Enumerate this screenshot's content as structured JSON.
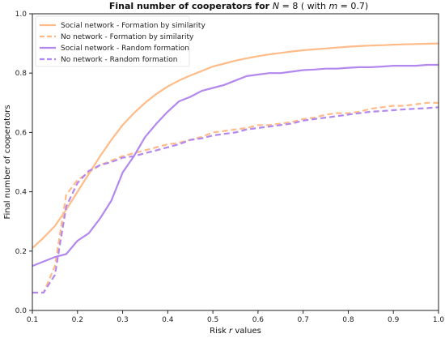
{
  "chart_data": {
    "type": "line",
    "title": "Final number of cooperators for N = 8 ( with m = 0.7)",
    "title_parts": {
      "prefix": "Final number of cooperators for ",
      "n_var": "N",
      "n_eq": " = 8 ( with ",
      "m_var": "m",
      "m_eq": " = 0.7)"
    },
    "xlabel": "Risk r values",
    "xlabel_parts": {
      "prefix": "Risk ",
      "var": "r",
      "suffix": " values"
    },
    "ylabel": "Final number of cooperators",
    "xlim": [
      0.1,
      1.0
    ],
    "ylim": [
      0.0,
      1.0
    ],
    "xticks": [
      "0.1",
      "0.2",
      "0.3",
      "0.4",
      "0.5",
      "0.6",
      "0.7",
      "0.8",
      "0.9",
      "1.0"
    ],
    "yticks": [
      "0.0",
      "0.2",
      "0.4",
      "0.6",
      "0.8",
      "1.0"
    ],
    "grid": false,
    "legend_position": "top-left",
    "x": [
      0.1,
      0.125,
      0.15,
      0.175,
      0.2,
      0.225,
      0.25,
      0.275,
      0.3,
      0.325,
      0.35,
      0.375,
      0.4,
      0.425,
      0.45,
      0.475,
      0.5,
      0.525,
      0.55,
      0.575,
      0.6,
      0.625,
      0.65,
      0.675,
      0.7,
      0.725,
      0.75,
      0.775,
      0.8,
      0.825,
      0.85,
      0.875,
      0.9,
      0.925,
      0.95,
      0.975,
      1.0
    ],
    "series": [
      {
        "name": "Social network - Formation by similarity",
        "color": "#ffbb88",
        "dash": "solid",
        "values": [
          0.21,
          0.245,
          0.285,
          0.34,
          0.4,
          0.46,
          0.52,
          0.575,
          0.625,
          0.665,
          0.7,
          0.73,
          0.755,
          0.775,
          0.792,
          0.807,
          0.822,
          0.832,
          0.842,
          0.85,
          0.857,
          0.863,
          0.868,
          0.873,
          0.877,
          0.88,
          0.883,
          0.886,
          0.889,
          0.891,
          0.893,
          0.894,
          0.896,
          0.897,
          0.898,
          0.899,
          0.9
        ]
      },
      {
        "name": "No network - Formation by similarity",
        "color": "#ffbb88",
        "dash": "dashed",
        "values": [
          0.06,
          0.06,
          0.15,
          0.39,
          0.44,
          0.465,
          0.49,
          0.505,
          0.52,
          0.53,
          0.54,
          0.55,
          0.56,
          0.565,
          0.575,
          0.585,
          0.6,
          0.605,
          0.61,
          0.615,
          0.625,
          0.625,
          0.63,
          0.635,
          0.645,
          0.65,
          0.66,
          0.665,
          0.665,
          0.67,
          0.68,
          0.685,
          0.69,
          0.69,
          0.695,
          0.7,
          0.7
        ]
      },
      {
        "name": "Social network - Random formation",
        "color": "#b388ee",
        "dash": "solid",
        "values": [
          0.15,
          0.165,
          0.18,
          0.19,
          0.235,
          0.26,
          0.31,
          0.37,
          0.465,
          0.52,
          0.585,
          0.63,
          0.67,
          0.705,
          0.72,
          0.74,
          0.75,
          0.76,
          0.775,
          0.79,
          0.795,
          0.8,
          0.8,
          0.805,
          0.81,
          0.812,
          0.815,
          0.815,
          0.818,
          0.82,
          0.82,
          0.822,
          0.825,
          0.825,
          0.825,
          0.828,
          0.828
        ]
      },
      {
        "name": "No network - Random formation",
        "color": "#b388ee",
        "dash": "dashed",
        "values": [
          0.06,
          0.06,
          0.12,
          0.35,
          0.43,
          0.47,
          0.49,
          0.5,
          0.515,
          0.52,
          0.53,
          0.54,
          0.55,
          0.56,
          0.575,
          0.58,
          0.59,
          0.595,
          0.6,
          0.61,
          0.615,
          0.62,
          0.625,
          0.63,
          0.64,
          0.645,
          0.65,
          0.655,
          0.66,
          0.665,
          0.67,
          0.672,
          0.675,
          0.678,
          0.68,
          0.682,
          0.685
        ]
      }
    ]
  }
}
